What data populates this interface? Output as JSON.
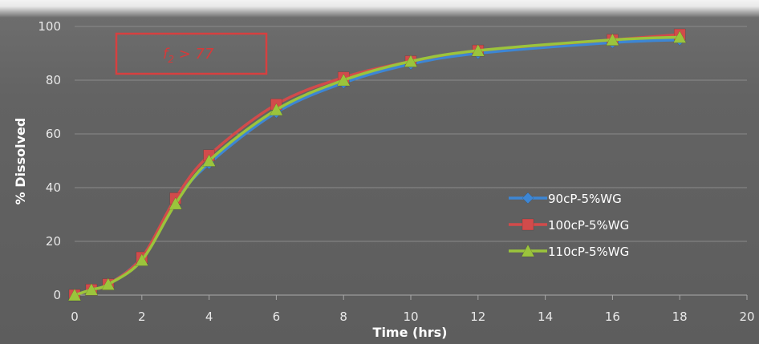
{
  "chart_data": {
    "type": "line",
    "title": "",
    "xlabel": "Time (hrs)",
    "ylabel": "% Dissolved",
    "xlim": [
      0,
      20
    ],
    "ylim": [
      0,
      100
    ],
    "xticks": [
      0,
      2,
      4,
      6,
      8,
      10,
      12,
      14,
      16,
      18,
      20
    ],
    "yticks": [
      0,
      20,
      40,
      60,
      80,
      100
    ],
    "grid": true,
    "legend_position": "right",
    "annotation": {
      "main": "f",
      "sub": "2",
      "rest": " > 77",
      "color": "#d63a3a"
    },
    "x": [
      0,
      0.5,
      1,
      2,
      3,
      4,
      6,
      8,
      10,
      12,
      16,
      18
    ],
    "series": [
      {
        "name": "90cP-5%WG",
        "color": "#3d86d4",
        "marker": "diamond",
        "values": [
          0,
          2,
          4,
          14,
          35,
          49,
          68,
          79,
          86,
          90,
          94,
          95
        ]
      },
      {
        "name": "100cP-5%WG",
        "color": "#d24b4b",
        "marker": "square",
        "values": [
          0,
          2,
          4,
          14,
          36,
          52,
          71,
          81,
          87,
          91,
          95,
          97
        ]
      },
      {
        "name": "110cP-5%WG",
        "color": "#9bc43c",
        "marker": "triangle",
        "values": [
          0,
          2,
          4,
          13,
          34,
          50,
          69,
          80,
          87,
          91,
          95,
          96
        ]
      }
    ]
  }
}
